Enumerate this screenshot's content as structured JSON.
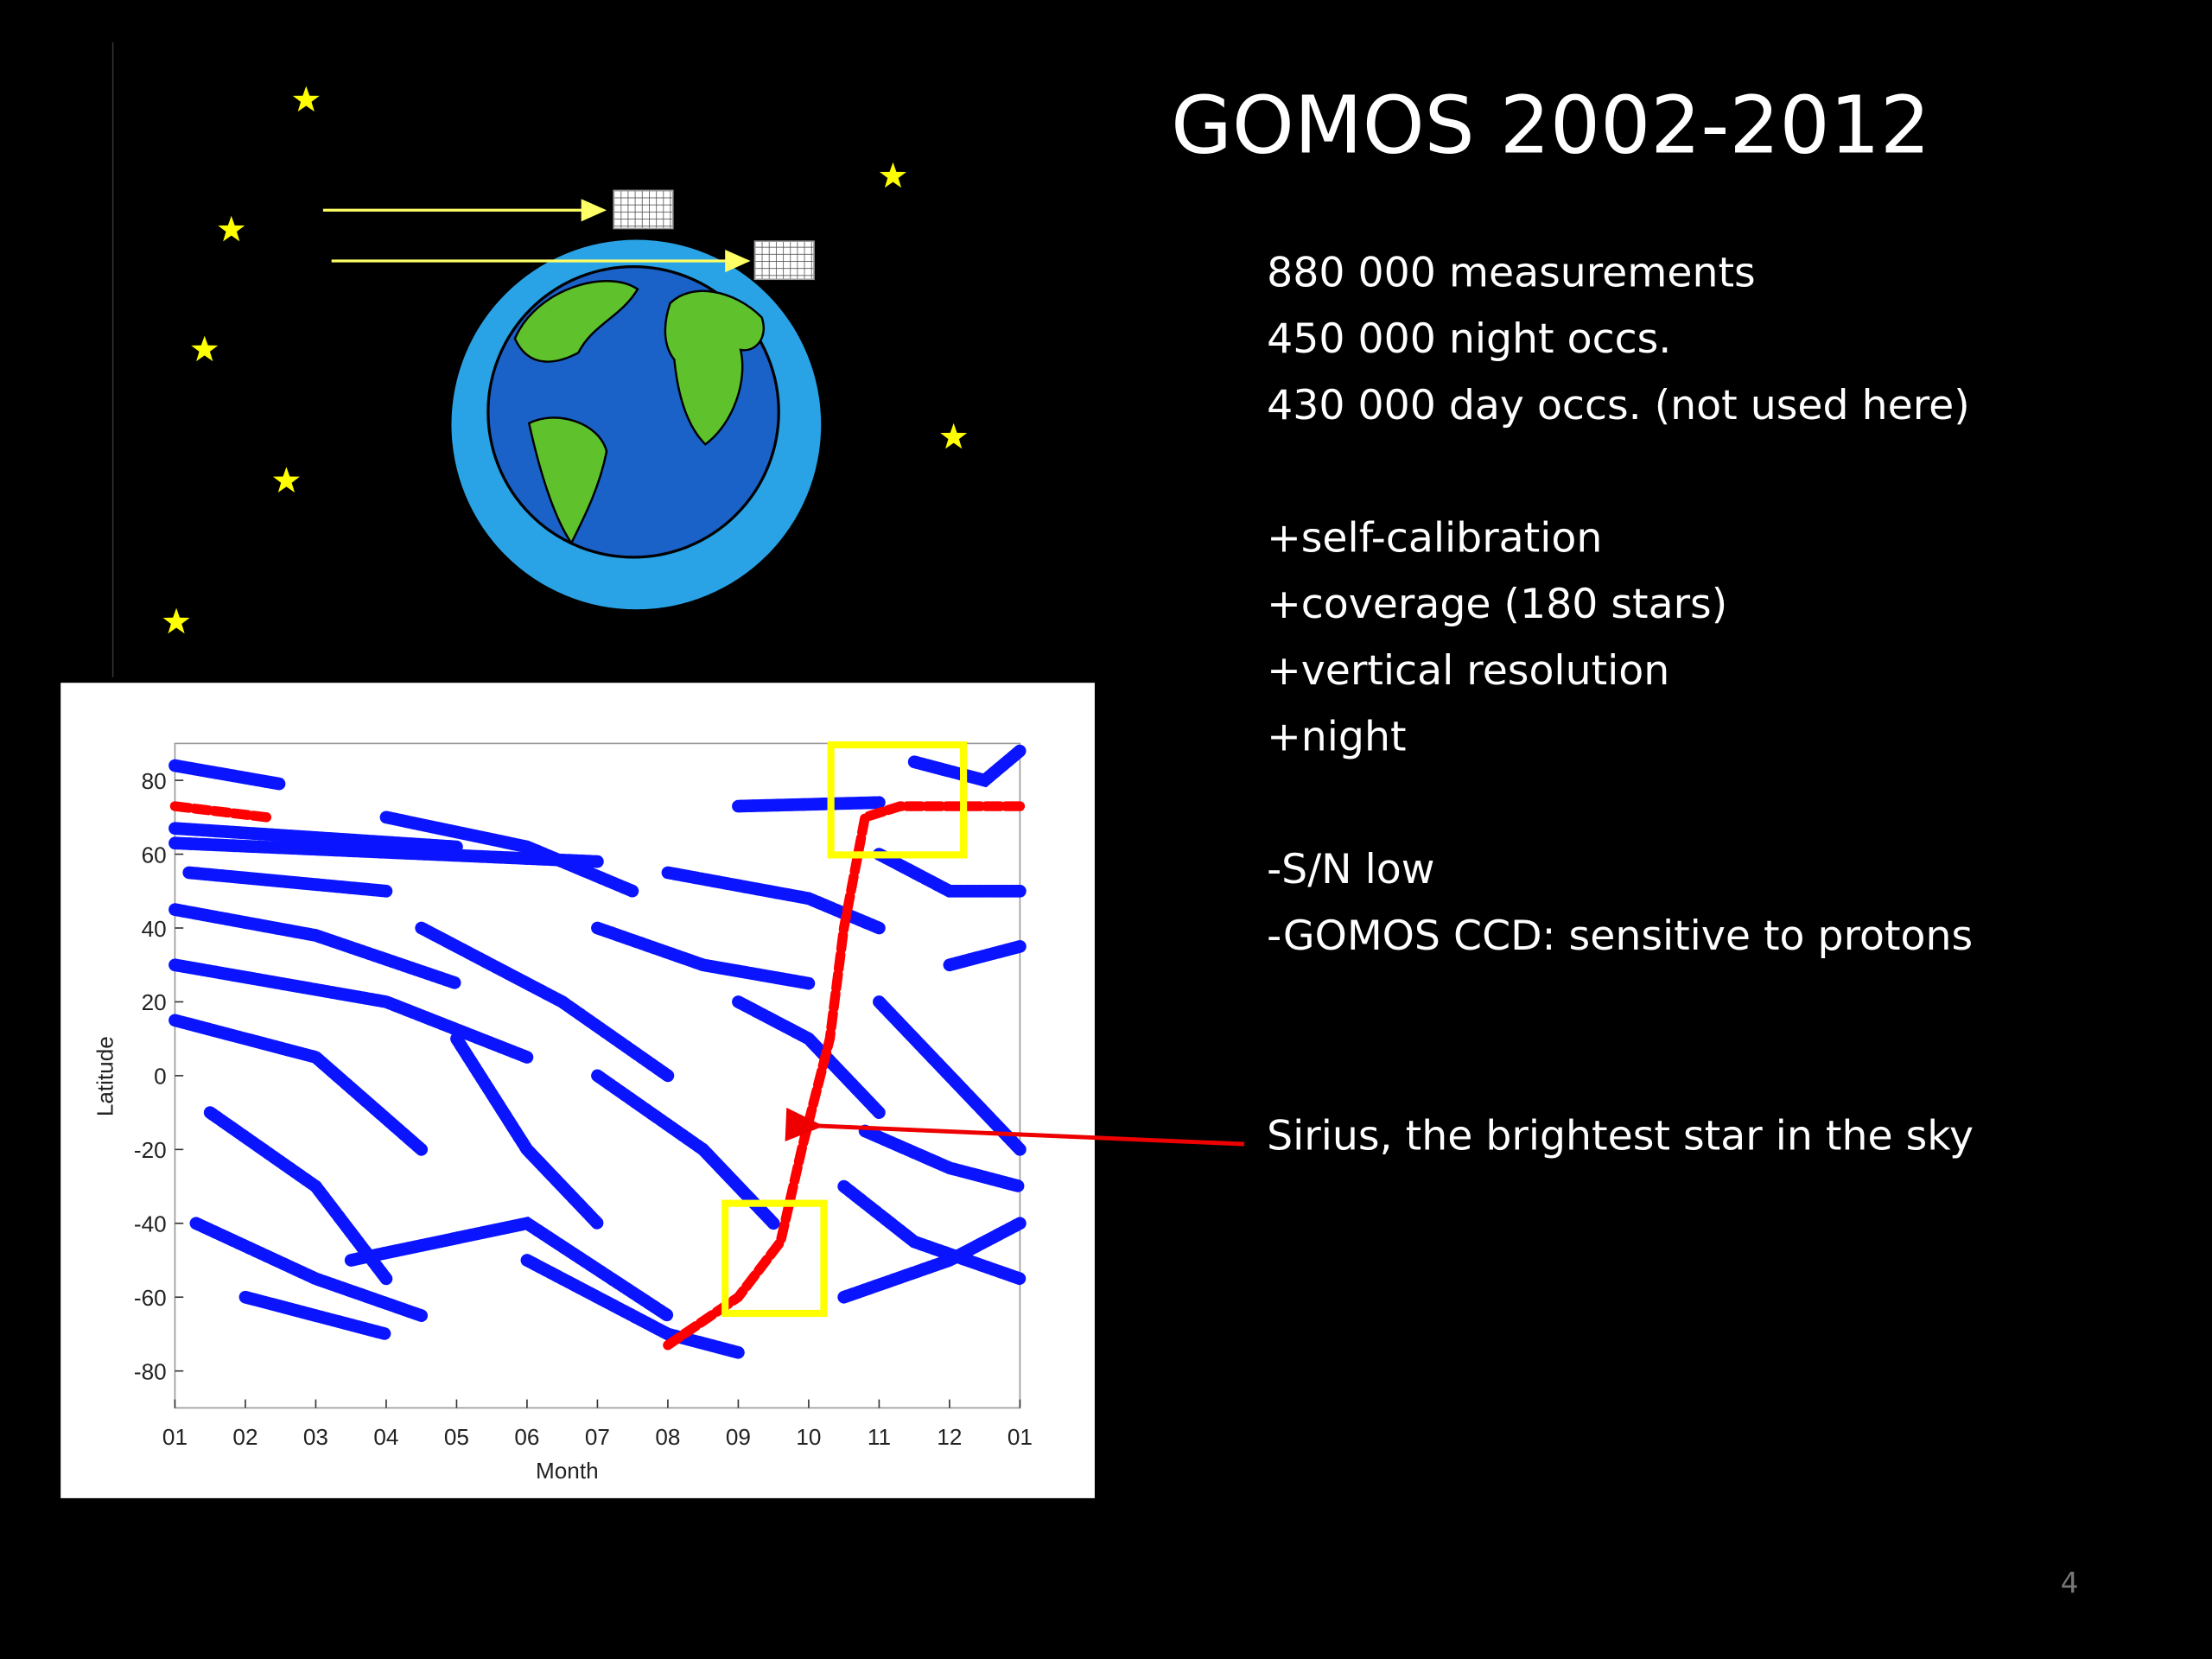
{
  "slide": {
    "title": "GOMOS 2002-2012",
    "lines": [
      "880 000 measurements",
      "450 000 night occs.",
      "430 000 day occs. (not used here)",
      "+self-calibration",
      "+coverage (180 stars)",
      "+vertical resolution",
      "+night",
      "-S/N low",
      "-GOMOS CCD: sensitive to protons"
    ],
    "annotation": "Sirius, the brightest star in the sky",
    "page_number": "4"
  },
  "chart_data": {
    "type": "line",
    "x_label": "Month",
    "y_label": "Latitude",
    "xlim": [
      0,
      12
    ],
    "ylim": [
      -90,
      90
    ],
    "xticks": [
      {
        "value": 0,
        "label": "01"
      },
      {
        "value": 1,
        "label": "02"
      },
      {
        "value": 2,
        "label": "03"
      },
      {
        "value": 3,
        "label": "04"
      },
      {
        "value": 4,
        "label": "05"
      },
      {
        "value": 5,
        "label": "06"
      },
      {
        "value": 6,
        "label": "07"
      },
      {
        "value": 7,
        "label": "08"
      },
      {
        "value": 8,
        "label": "09"
      },
      {
        "value": 9,
        "label": "10"
      },
      {
        "value": 10,
        "label": "11"
      },
      {
        "value": 11,
        "label": "12"
      },
      {
        "value": 12,
        "label": "01"
      }
    ],
    "yticks": [
      -80,
      -60,
      -40,
      -20,
      0,
      20,
      40,
      60,
      80
    ],
    "series": [
      {
        "color": "#0a14ff",
        "x": [
          0,
          1.5,
          null,
          0,
          4,
          null,
          0,
          6,
          null,
          0.2,
          3,
          null,
          0,
          2,
          4,
          null,
          0,
          3,
          5,
          null,
          0,
          2,
          3.5,
          null,
          0.5,
          2,
          3,
          null,
          0.3,
          2,
          3.5,
          null,
          1,
          3,
          null,
          2.5,
          5,
          7,
          null,
          3,
          5,
          6.5,
          null,
          3.5,
          5.5,
          7,
          null,
          4,
          5,
          6,
          null,
          5,
          7,
          8,
          null,
          6,
          7.5,
          9,
          null,
          6,
          7.5,
          8.5,
          null,
          7,
          9,
          10,
          null,
          8,
          9,
          10,
          null,
          8,
          10,
          null,
          9.5,
          10.5,
          12,
          null,
          9.5,
          11,
          12,
          null,
          10,
          11,
          12,
          null,
          10,
          11,
          12,
          null,
          10.5,
          11.5,
          12,
          null,
          11,
          12,
          null,
          9.8,
          11,
          12
        ],
        "values": [
          84,
          79,
          null,
          67,
          62,
          null,
          63,
          58,
          null,
          55,
          50,
          null,
          45,
          38,
          25,
          null,
          30,
          20,
          5,
          null,
          15,
          5,
          -20,
          null,
          -10,
          -30,
          -55,
          null,
          -40,
          -55,
          -65,
          null,
          -60,
          -70,
          null,
          -50,
          -40,
          -65,
          null,
          70,
          62,
          50,
          null,
          40,
          20,
          0,
          null,
          10,
          -20,
          -40,
          null,
          -50,
          -70,
          -75,
          null,
          40,
          30,
          25,
          null,
          0,
          -20,
          -40,
          null,
          55,
          48,
          40,
          null,
          20,
          10,
          -10,
          null,
          73,
          74,
          null,
          -30,
          -45,
          -55,
          null,
          -60,
          -50,
          -40,
          null,
          20,
          0,
          -20,
          null,
          60,
          50,
          50,
          null,
          85,
          80,
          88,
          null,
          30,
          35,
          null,
          -15,
          -25,
          -30
        ]
      },
      {
        "color": "#ff0000",
        "x": [
          0,
          1.3,
          null,
          7,
          8,
          8.6,
          8.9,
          9.1,
          9.3,
          9.5,
          9.8,
          10.3,
          12
        ],
        "values": [
          73,
          70,
          null,
          -73,
          -60,
          -45,
          -20,
          -5,
          10,
          40,
          70,
          73,
          73
        ]
      }
    ]
  }
}
